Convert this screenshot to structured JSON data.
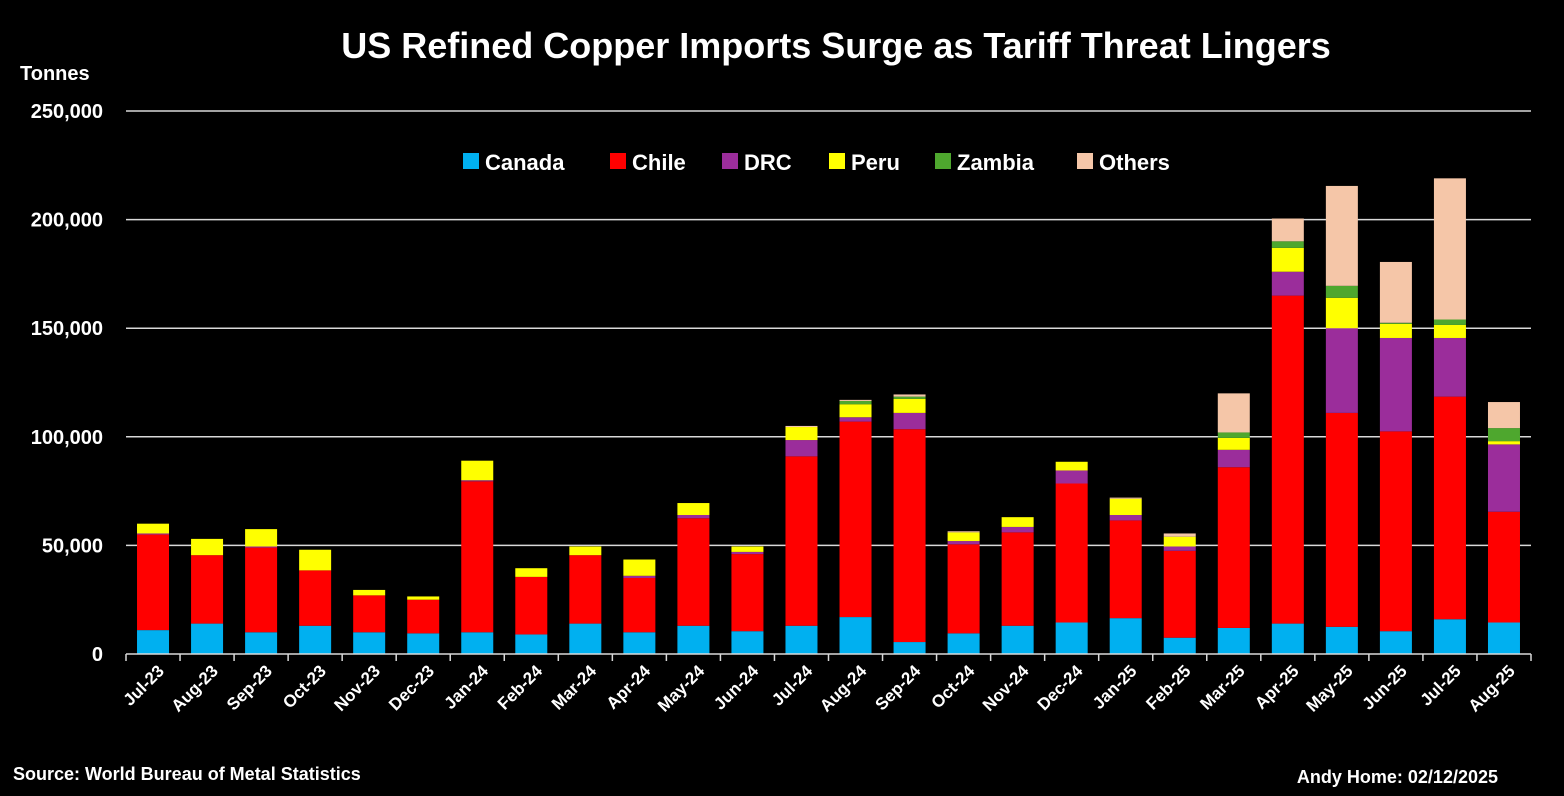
{
  "chart_data": {
    "type": "stacked-bar",
    "title": "US Refined Copper Imports Surge as Tariff Threat Lingers",
    "ylabel": "Tonnes",
    "xlabel": "",
    "ylim": [
      0,
      250000
    ],
    "yticks": [
      0,
      50000,
      100000,
      150000,
      200000,
      250000
    ],
    "ytick_labels": [
      "0",
      "50,000",
      "100,000",
      "150,000",
      "200,000",
      "250,000"
    ],
    "grid": true,
    "legend_position": "top-center",
    "categories": [
      "Jul-23",
      "Aug-23",
      "Sep-23",
      "Oct-23",
      "Nov-23",
      "Dec-23",
      "Jan-24",
      "Feb-24",
      "Mar-24",
      "Apr-24",
      "May-24",
      "Jun-24",
      "Jul-24",
      "Aug-24",
      "Sep-24",
      "Oct-24",
      "Nov-24",
      "Dec-24",
      "Jan-25",
      "Feb-25",
      "Mar-25",
      "Apr-25",
      "May-25",
      "Jun-25",
      "Jul-25",
      "Aug-25"
    ],
    "series": [
      {
        "name": "Canada",
        "color": "#00b0f0",
        "values": [
          11000,
          14000,
          10000,
          13000,
          10000,
          9500,
          10000,
          9000,
          14000,
          10000,
          13000,
          10500,
          13000,
          17000,
          5500,
          9500,
          13000,
          14500,
          16500,
          7500,
          12000,
          14000,
          12500,
          10500,
          16000,
          14500
        ]
      },
      {
        "name": "Chile",
        "color": "#ff0000",
        "values": [
          44000,
          31500,
          39000,
          25500,
          17000,
          15500,
          69500,
          26500,
          31500,
          25000,
          49500,
          35500,
          78000,
          90000,
          98000,
          41000,
          43000,
          64000,
          45000,
          40000,
          74000,
          151000,
          98500,
          92000,
          102500,
          51000
        ]
      },
      {
        "name": "DRC",
        "color": "#9b2d9b",
        "values": [
          500,
          0,
          500,
          0,
          0,
          0,
          500,
          0,
          0,
          1000,
          1500,
          1000,
          7500,
          2000,
          7500,
          1500,
          2500,
          6000,
          2500,
          2000,
          8000,
          11000,
          39000,
          43000,
          27000,
          31000
        ]
      },
      {
        "name": "Peru",
        "color": "#ffff00",
        "values": [
          4500,
          7500,
          8000,
          9500,
          2500,
          1500,
          9000,
          4000,
          4000,
          7500,
          5500,
          2500,
          6000,
          6000,
          6500,
          4000,
          4500,
          4000,
          7500,
          4500,
          5500,
          11000,
          14000,
          6500,
          6000,
          1500
        ]
      },
      {
        "name": "Zambia",
        "color": "#4ea72e",
        "values": [
          0,
          0,
          0,
          0,
          0,
          0,
          0,
          0,
          0,
          0,
          0,
          0,
          0,
          1500,
          1000,
          0,
          0,
          0,
          0,
          0,
          2500,
          3000,
          5500,
          500,
          2500,
          6000
        ]
      },
      {
        "name": "Others",
        "color": "#f5c6a8",
        "values": [
          0,
          0,
          0,
          0,
          0,
          0,
          0,
          0,
          0,
          0,
          0,
          0,
          500,
          500,
          1000,
          500,
          0,
          0,
          500,
          1500,
          18000,
          10500,
          46000,
          28000,
          65000,
          12000
        ]
      }
    ]
  },
  "footer": {
    "source": "Source: World Bureau of Metal Statistics",
    "credit": "Andy Home: 02/12/2025"
  }
}
